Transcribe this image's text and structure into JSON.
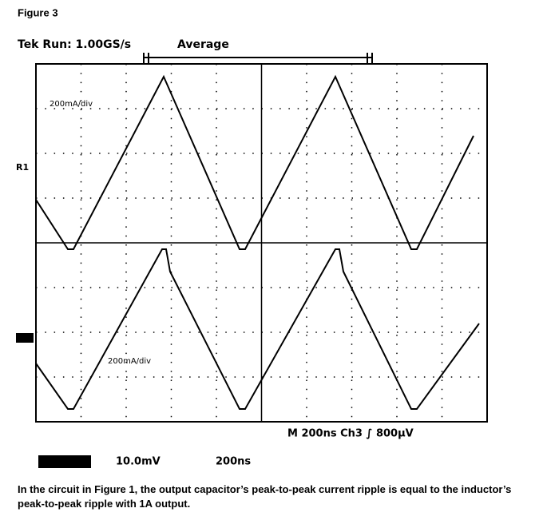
{
  "figure": {
    "label": "Figure 3"
  },
  "scope": {
    "header": "Tek Run: 1.00GS/s",
    "mode": "Average",
    "top_trace_scale": "200mA/div",
    "ref_marker": "R1",
    "bottom_trace_scale": "200mA/div",
    "status": "M 200ns Ch3 ∫ 800µV",
    "footer_ch": "10.0mV",
    "footer_ref": "200ns"
  },
  "caption": "In the circuit in Figure 1, the output capacitor’s peak-to-peak current ripple is equal to the inductor’s peak-to-peak ripple with 1A output."
}
